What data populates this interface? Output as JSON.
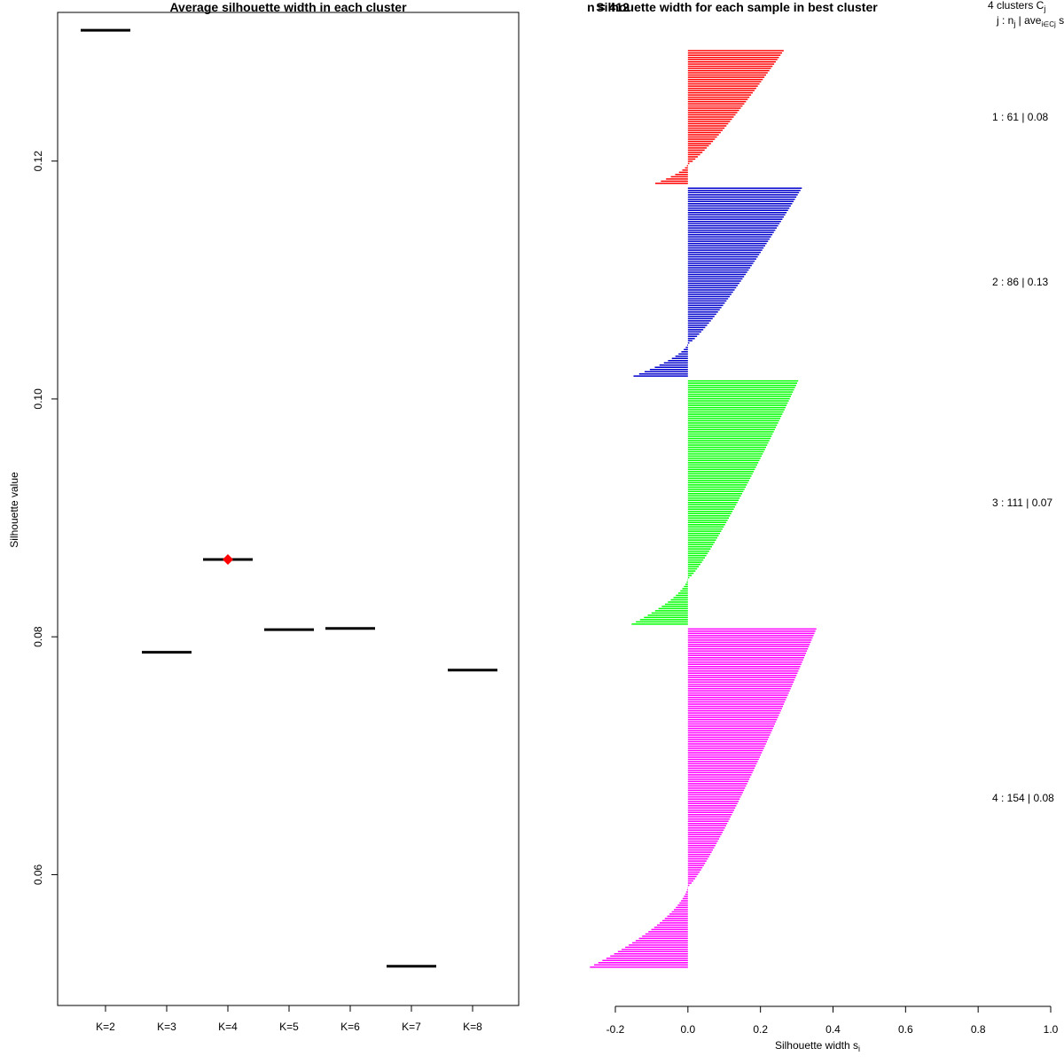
{
  "chart_data": [
    {
      "type": "scatter",
      "title": "Average silhouette width in each cluster",
      "ylabel": "Silhouette value",
      "xlabel": "",
      "categories": [
        "K=2",
        "K=3",
        "K=4",
        "K=5",
        "K=6",
        "K=7",
        "K=8"
      ],
      "values": [
        0.131,
        0.0787,
        0.0865,
        0.0806,
        0.0807,
        0.0523,
        0.0772
      ],
      "best_index": 2,
      "best_color": "#ff0000",
      "ylim": [
        0.049,
        0.1325
      ],
      "yticks": [
        0.06,
        0.08,
        0.1,
        0.12
      ],
      "ytick_labels": [
        "0.06",
        "0.08",
        "0.10",
        "0.12"
      ]
    },
    {
      "type": "bar",
      "orientation": "horizontal",
      "title": "Silhouette width for each sample in best cluster",
      "title_overlap_text": "n = 412",
      "xlabel": "Silhouette width s",
      "xlabel_subscript": "i",
      "xlim": [
        -0.2,
        1.0
      ],
      "xticks": [
        -0.2,
        0.0,
        0.2,
        0.4,
        0.6,
        0.8,
        1.0
      ],
      "xtick_labels": [
        "-0.2",
        "0.0",
        "0.2",
        "0.4",
        "0.6",
        "0.8",
        "1.0"
      ],
      "header_line1": "4  clusters  C",
      "header_line1_sub": "j",
      "header_line2": "j :  n",
      "header_line2_sub": "j",
      "header_line2_rest": " | ave",
      "header_line2_sub2": "i∈Cj",
      "header_line2_tail": "  s",
      "clusters": [
        {
          "label": "1 :  61  |  0.08",
          "n": 61,
          "max": 0.26,
          "min": -0.09,
          "color": "#ff0000"
        },
        {
          "label": "2 :  86  |  0.13",
          "n": 86,
          "max": 0.31,
          "min": -0.15,
          "color": "#0000cd"
        },
        {
          "label": "3 :  111  |  0.07",
          "n": 111,
          "max": 0.3,
          "min": -0.155,
          "color": "#00ff00"
        },
        {
          "label": "4 :  154  |  0.08",
          "n": 154,
          "max": 0.35,
          "min": -0.27,
          "color": "#ff00ff"
        }
      ]
    }
  ]
}
